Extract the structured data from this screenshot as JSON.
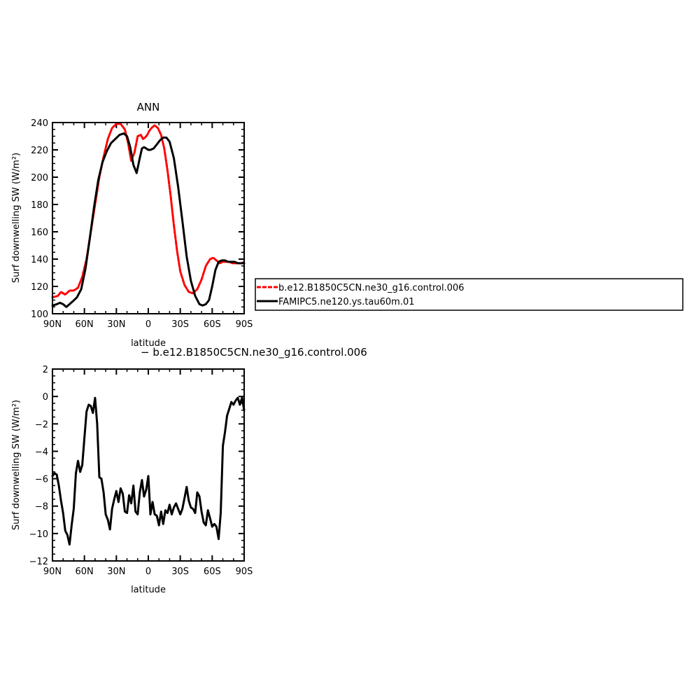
{
  "chart_data": [
    {
      "type": "line",
      "title": "ANN",
      "xlabel": "latitude",
      "ylabel": "Surf downwelling SW (W/m²)",
      "xlim": [
        90,
        -90
      ],
      "ylim": [
        100,
        240
      ],
      "x_ticks": [
        {
          "value": 90,
          "label": "90N"
        },
        {
          "value": 60,
          "label": "60N"
        },
        {
          "value": 30,
          "label": "30N"
        },
        {
          "value": 0,
          "label": "0"
        },
        {
          "value": -30,
          "label": "30S"
        },
        {
          "value": -60,
          "label": "60S"
        },
        {
          "value": -90,
          "label": "90S"
        }
      ],
      "y_ticks": [
        100,
        120,
        140,
        160,
        180,
        200,
        220,
        240
      ],
      "legend": "outside-right",
      "series": [
        {
          "name": "b.e12.B1850C5CN.ne30_g16.control.006",
          "color": "#ff0000",
          "dashed": true,
          "x": [
            90,
            85,
            82,
            78,
            74,
            70,
            66,
            62,
            58,
            54,
            50,
            46,
            42,
            38,
            34,
            30,
            26,
            22,
            19,
            16,
            13,
            10,
            7,
            5,
            3,
            1,
            -1,
            -3,
            -6,
            -9,
            -12,
            -15,
            -18,
            -21,
            -24,
            -27,
            -30,
            -34,
            -38,
            -42,
            -46,
            -50,
            -54,
            -58,
            -61,
            -64,
            -67,
            -70,
            -73,
            -76,
            -79,
            -82,
            -85,
            -88,
            -90
          ],
          "y": [
            112,
            113,
            116,
            114,
            117,
            117,
            119,
            127,
            140,
            160,
            180,
            200,
            215,
            228,
            236,
            239,
            239,
            235,
            225,
            212,
            218,
            230,
            231,
            228,
            229,
            231,
            234,
            236,
            238,
            236,
            231,
            221,
            205,
            186,
            165,
            146,
            131,
            121,
            116,
            115,
            118,
            125,
            135,
            140,
            141,
            139,
            137,
            138,
            138,
            138,
            137,
            137,
            137,
            137,
            138
          ]
        },
        {
          "name": "FAMIPC5.ne120.ys.tau60m.01",
          "color": "#000000",
          "dashed": false,
          "x": [
            90,
            86,
            83,
            80,
            77,
            74,
            71,
            67,
            63,
            59,
            55,
            51,
            47,
            43,
            39,
            35,
            31,
            27,
            23,
            20,
            17,
            14,
            11,
            8,
            6,
            4,
            2,
            0,
            -2,
            -5,
            -8,
            -11,
            -14,
            -17,
            -20,
            -24,
            -28,
            -32,
            -36,
            -40,
            -44,
            -48,
            -51,
            -54,
            -57,
            -60,
            -63,
            -66,
            -69,
            -72,
            -75,
            -78,
            -81,
            -84,
            -87,
            -90
          ],
          "y": [
            106,
            107,
            108,
            107,
            105,
            107,
            109,
            112,
            118,
            133,
            155,
            178,
            198,
            211,
            219,
            225,
            228,
            231,
            232,
            230,
            222,
            209,
            203,
            214,
            221,
            222,
            221,
            220,
            220,
            221,
            224,
            227,
            229,
            229,
            226,
            214,
            193,
            168,
            142,
            124,
            113,
            107,
            106,
            107,
            110,
            120,
            132,
            138,
            139,
            139,
            138,
            138,
            138,
            137,
            137,
            137
          ]
        }
      ]
    },
    {
      "type": "line",
      "title": "− b.e12.B1850C5CN.ne30_g16.control.006",
      "xlabel": "latitude",
      "ylabel": "Surf downwelling SW (W/m²)",
      "xlim": [
        90,
        -90
      ],
      "ylim": [
        -12,
        2
      ],
      "x_ticks": [
        {
          "value": 90,
          "label": "90N"
        },
        {
          "value": 60,
          "label": "60N"
        },
        {
          "value": 30,
          "label": "30N"
        },
        {
          "value": 0,
          "label": "0"
        },
        {
          "value": -30,
          "label": "30S"
        },
        {
          "value": -60,
          "label": "60S"
        },
        {
          "value": -90,
          "label": "90S"
        }
      ],
      "y_ticks": [
        -12,
        -10,
        -8,
        -6,
        -4,
        -2,
        0,
        2
      ],
      "series": [
        {
          "name": "",
          "color": "#000000",
          "dashed": false,
          "x": [
            90,
            88,
            86,
            84,
            82,
            80,
            78,
            76,
            74,
            72,
            70,
            68,
            66,
            64,
            62,
            60,
            58,
            56,
            54,
            52,
            50,
            48,
            46,
            44,
            42,
            40,
            38,
            36,
            34,
            32,
            30,
            28,
            26,
            24,
            22,
            20,
            18,
            16,
            14,
            12,
            10,
            8,
            6,
            4,
            2,
            0,
            -2,
            -4,
            -6,
            -8,
            -10,
            -12,
            -14,
            -16,
            -18,
            -20,
            -22,
            -24,
            -26,
            -28,
            -30,
            -32,
            -34,
            -36,
            -38,
            -40,
            -42,
            -44,
            -46,
            -48,
            -50,
            -52,
            -54,
            -56,
            -58,
            -60,
            -62,
            -64,
            -66,
            -68,
            -70,
            -72,
            -74,
            -76,
            -78,
            -80,
            -82,
            -84,
            -86,
            -88,
            -90
          ],
          "y": [
            -5.8,
            -5.6,
            -5.7,
            -6.5,
            -7.6,
            -8.5,
            -9.8,
            -10.1,
            -10.8,
            -9.4,
            -8.2,
            -5.6,
            -4.7,
            -5.5,
            -5.0,
            -3.0,
            -1.1,
            -0.6,
            -0.7,
            -1.2,
            -0.1,
            -2.0,
            -5.9,
            -6.0,
            -7.0,
            -8.6,
            -9.0,
            -9.7,
            -8.2,
            -7.5,
            -6.9,
            -7.7,
            -6.7,
            -7.1,
            -8.4,
            -8.5,
            -7.2,
            -7.8,
            -6.5,
            -8.4,
            -8.6,
            -7.0,
            -6.1,
            -7.3,
            -6.8,
            -5.8,
            -8.6,
            -7.7,
            -8.6,
            -8.7,
            -9.4,
            -8.4,
            -9.3,
            -8.3,
            -8.5,
            -7.9,
            -8.6,
            -8.1,
            -7.8,
            -8.2,
            -8.6,
            -8.2,
            -7.4,
            -6.6,
            -7.6,
            -8.1,
            -8.2,
            -8.5,
            -7.0,
            -7.3,
            -8.4,
            -9.2,
            -9.4,
            -8.3,
            -8.9,
            -9.5,
            -9.3,
            -9.5,
            -10.4,
            -8.5,
            -3.6,
            -2.6,
            -1.4,
            -0.9,
            -0.4,
            -0.6,
            -0.3,
            -0.1,
            -0.6,
            -0.1,
            -1.0
          ]
        }
      ]
    }
  ]
}
